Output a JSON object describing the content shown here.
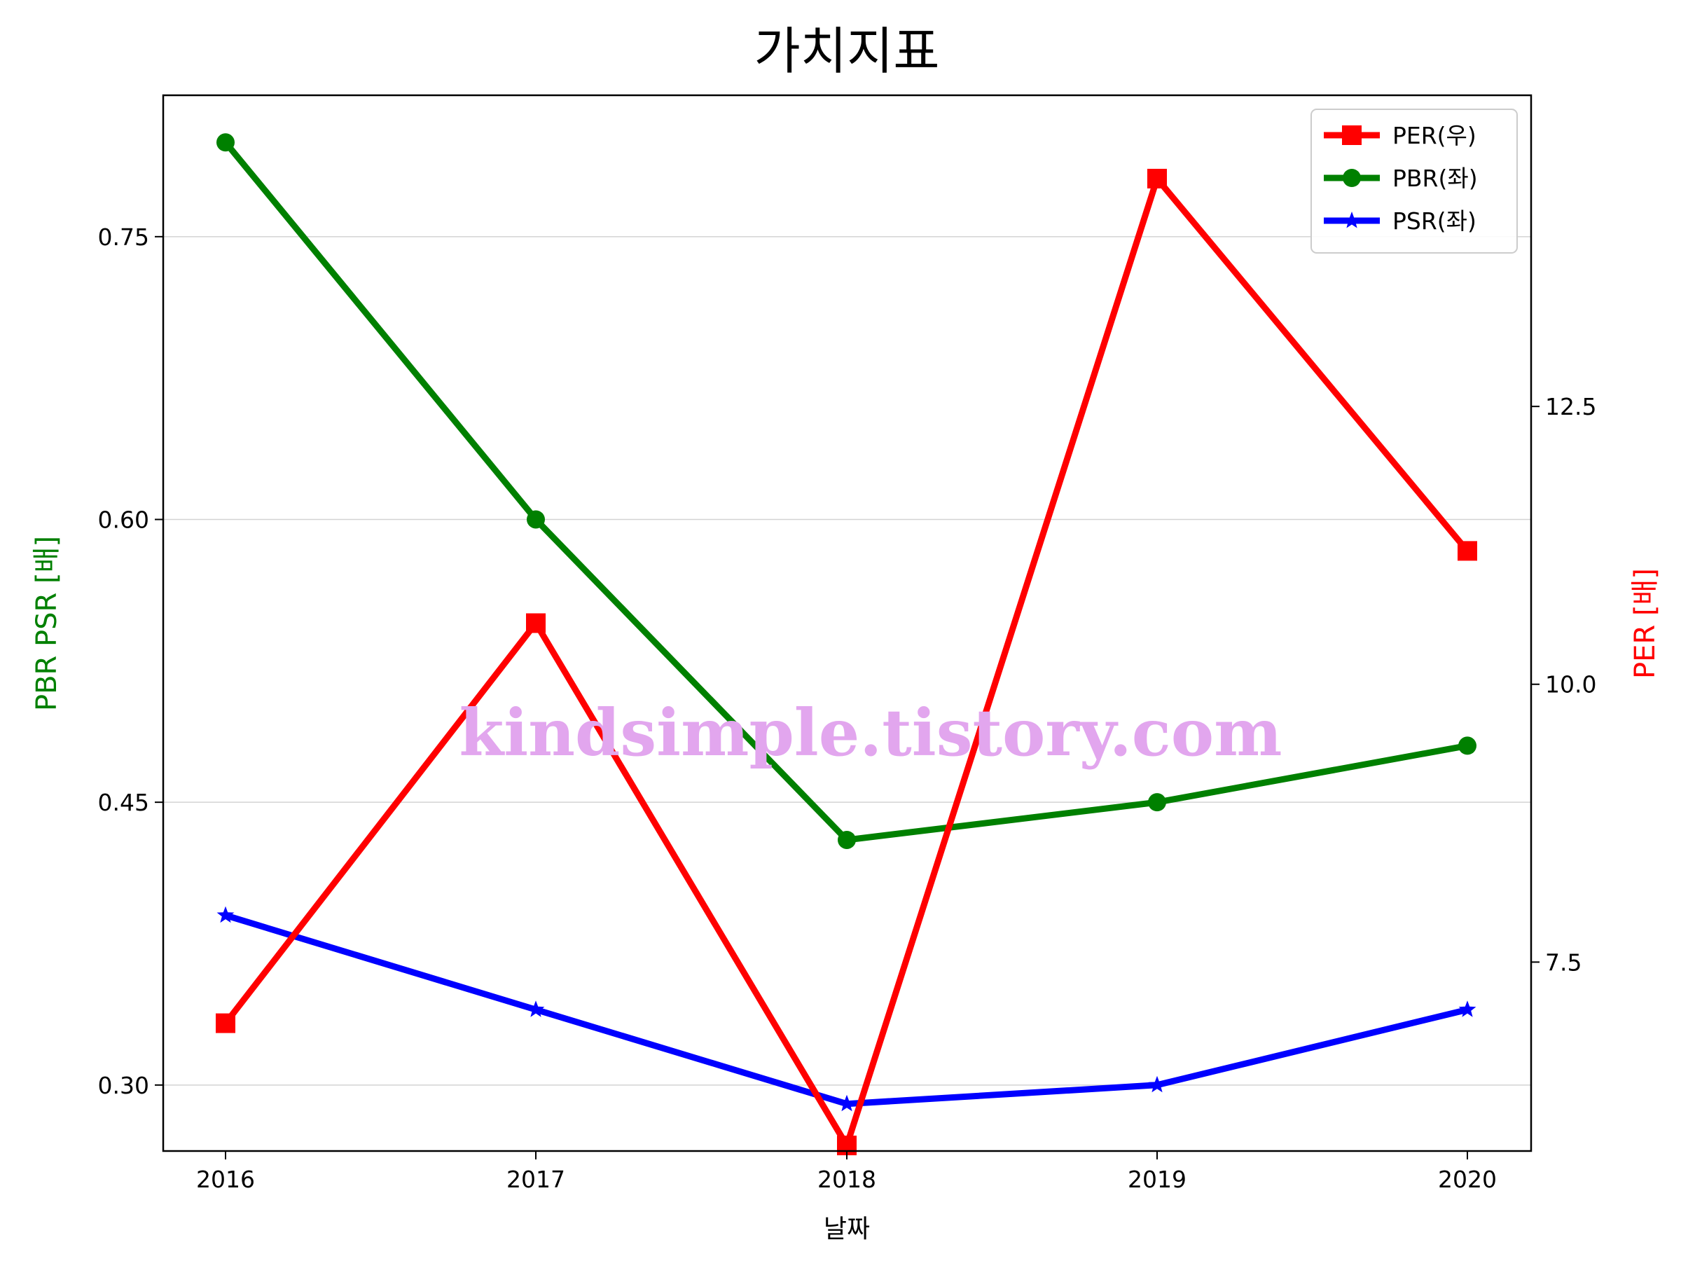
{
  "chart_data": {
    "type": "line",
    "title": "가치지표",
    "xlabel": "날짜",
    "ylabel_left": "PBR PSR [배]",
    "ylabel_right": "PER [배]",
    "watermark": "kindsimple.tistory.com",
    "categories": [
      "2016",
      "2017",
      "2018",
      "2019",
      "2020"
    ],
    "left_axis": {
      "ylim": [
        0.265,
        0.825
      ],
      "ticks": [
        0.3,
        0.45,
        0.6,
        0.75
      ],
      "tick_labels": [
        "0.30",
        "0.45",
        "0.60",
        "0.75"
      ],
      "label_color": "#008000"
    },
    "right_axis": {
      "ylim": [
        5.8,
        15.3
      ],
      "ticks": [
        7.5,
        10.0,
        12.5
      ],
      "tick_labels": [
        "7.5",
        "10.0",
        "12.5"
      ],
      "label_color": "#ff0000"
    },
    "grid": "horizontal-left",
    "legend_position": "top-right",
    "series": [
      {
        "name": "PER(우)",
        "axis": "right",
        "color": "#ff0000",
        "marker": "square",
        "values": [
          6.95,
          10.55,
          5.85,
          14.55,
          11.2
        ]
      },
      {
        "name": "PBR(좌)",
        "axis": "left",
        "color": "#008000",
        "marker": "circle",
        "values": [
          0.8,
          0.6,
          0.43,
          0.45,
          0.48
        ]
      },
      {
        "name": "PSR(좌)",
        "axis": "left",
        "color": "#0000ff",
        "marker": "star",
        "values": [
          0.39,
          0.34,
          0.29,
          0.3,
          0.34
        ]
      }
    ]
  }
}
